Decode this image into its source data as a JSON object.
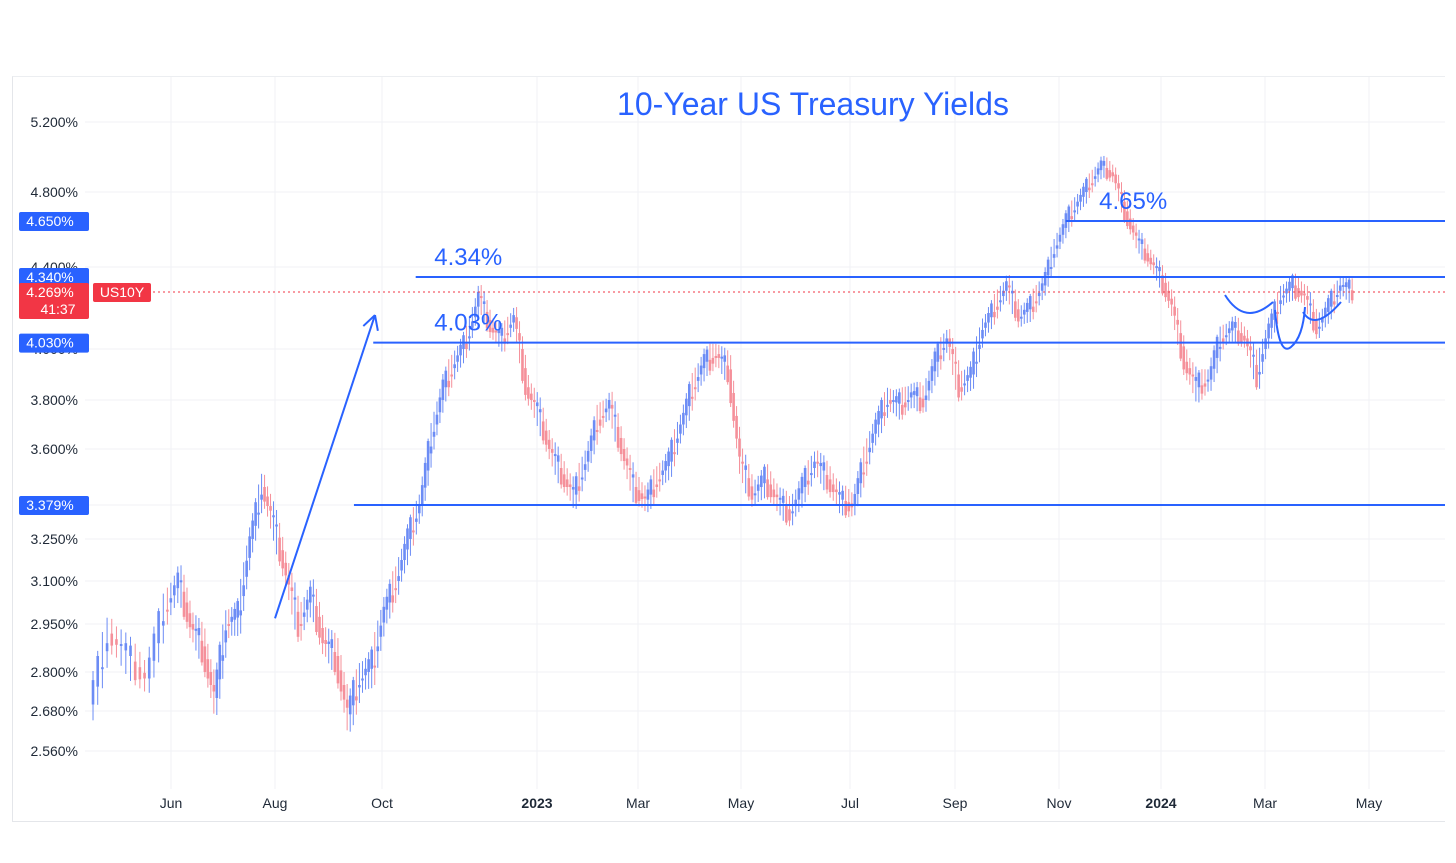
{
  "chart_data": {
    "type": "candlestick",
    "title": "10-Year US Treasury Yields",
    "symbol": "US10Y",
    "y_axis": {
      "ticks": [
        "5.200%",
        "4.800%",
        "4.400%",
        "4.000%",
        "3.800%",
        "3.600%",
        "3.379%",
        "3.250%",
        "3.100%",
        "2.950%",
        "2.800%",
        "2.680%",
        "2.560%"
      ],
      "tick_values": [
        5.2,
        4.8,
        4.4,
        4.0,
        3.8,
        3.6,
        3.379,
        3.25,
        3.1,
        2.95,
        2.8,
        2.68,
        2.56
      ]
    },
    "x_axis": {
      "ticks": [
        {
          "label": "Jun",
          "date": "2022-06",
          "bold": false
        },
        {
          "label": "Aug",
          "date": "2022-08",
          "bold": false
        },
        {
          "label": "Oct",
          "date": "2022-10",
          "bold": false
        },
        {
          "label": "2023",
          "date": "2023-01",
          "bold": true
        },
        {
          "label": "Mar",
          "date": "2023-03",
          "bold": false
        },
        {
          "label": "May",
          "date": "2023-05",
          "bold": false
        },
        {
          "label": "Jul",
          "date": "2023-07",
          "bold": false
        },
        {
          "label": "Sep",
          "date": "2023-09",
          "bold": false
        },
        {
          "label": "Nov",
          "date": "2023-11",
          "bold": false
        },
        {
          "label": "2024",
          "date": "2024-01",
          "bold": true
        },
        {
          "label": "Mar",
          "date": "2024-03",
          "bold": false
        },
        {
          "label": "May",
          "date": "2024-05",
          "bold": false
        }
      ]
    },
    "price_badges": [
      {
        "label": "4.650%",
        "value": 4.65,
        "color": "#2962ff"
      },
      {
        "label": "4.340%",
        "value": 4.34,
        "color": "#2962ff"
      },
      {
        "label": "4.030%",
        "value": 4.03,
        "color": "#2962ff"
      },
      {
        "label": "3.379%",
        "value": 3.379,
        "color": "#2962ff"
      }
    ],
    "current": {
      "value": 4.269,
      "label": "4.269%",
      "countdown": "41:37",
      "color": "#f23645"
    },
    "levels": [
      {
        "value": 4.65,
        "label": "4.65%",
        "start": "2023-11-05",
        "end": "2024-05-31"
      },
      {
        "value": 4.34,
        "label": "4.34%",
        "start": "2022-10-21",
        "end": "2024-05-31"
      },
      {
        "value": 4.03,
        "label": "4.03%",
        "start": "2022-09-26",
        "end": "2024-05-31"
      },
      {
        "value": 3.379,
        "label": "",
        "start": "2022-09-15",
        "end": "2024-05-31"
      }
    ],
    "annotations": [
      {
        "type": "arrow",
        "from": {
          "date": "2022-08-01",
          "value": 2.97
        },
        "to": {
          "date": "2022-09-27",
          "value": 4.16
        }
      }
    ],
    "series": [
      {
        "date": "2022-05-02",
        "close": 2.7
      },
      {
        "date": "2022-05-09",
        "close": 2.92
      },
      {
        "date": "2022-05-16",
        "close": 2.85
      },
      {
        "date": "2022-05-23",
        "close": 2.78
      },
      {
        "date": "2022-05-30",
        "close": 3.0
      },
      {
        "date": "2022-06-06",
        "close": 3.1
      },
      {
        "date": "2022-06-13",
        "close": 2.95
      },
      {
        "date": "2022-06-20",
        "close": 2.88
      },
      {
        "date": "2022-06-27",
        "close": 2.72
      },
      {
        "date": "2022-07-04",
        "close": 2.95
      },
      {
        "date": "2022-07-11",
        "close": 2.98
      },
      {
        "date": "2022-07-18",
        "close": 3.25
      },
      {
        "date": "2022-07-25",
        "close": 3.45
      },
      {
        "date": "2022-08-01",
        "close": 3.3
      },
      {
        "date": "2022-08-08",
        "close": 3.12
      },
      {
        "date": "2022-08-15",
        "close": 2.95
      },
      {
        "date": "2022-08-22",
        "close": 3.05
      },
      {
        "date": "2022-08-29",
        "close": 2.9
      },
      {
        "date": "2022-09-05",
        "close": 2.85
      },
      {
        "date": "2022-09-12",
        "close": 2.67
      },
      {
        "date": "2022-09-19",
        "close": 2.78
      },
      {
        "date": "2022-09-26",
        "close": 2.82
      },
      {
        "date": "2022-10-03",
        "close": 3.0
      },
      {
        "date": "2022-10-10",
        "close": 3.1
      },
      {
        "date": "2022-10-17",
        "close": 3.25
      },
      {
        "date": "2022-10-24",
        "close": 3.38
      },
      {
        "date": "2022-10-31",
        "close": 3.65
      },
      {
        "date": "2022-11-07",
        "close": 3.85
      },
      {
        "date": "2022-11-14",
        "close": 3.95
      },
      {
        "date": "2022-11-21",
        "close": 4.05
      },
      {
        "date": "2022-11-28",
        "close": 4.25
      },
      {
        "date": "2022-12-05",
        "close": 4.1
      },
      {
        "date": "2022-12-12",
        "close": 4.05
      },
      {
        "date": "2022-12-19",
        "close": 4.15
      },
      {
        "date": "2022-12-26",
        "close": 3.85
      },
      {
        "date": "2023-01-02",
        "close": 3.75
      },
      {
        "date": "2023-01-09",
        "close": 3.6
      },
      {
        "date": "2023-01-16",
        "close": 3.5
      },
      {
        "date": "2023-01-23",
        "close": 3.42
      },
      {
        "date": "2023-01-30",
        "close": 3.55
      },
      {
        "date": "2023-02-06",
        "close": 3.72
      },
      {
        "date": "2023-02-13",
        "close": 3.78
      },
      {
        "date": "2023-02-20",
        "close": 3.6
      },
      {
        "date": "2023-02-27",
        "close": 3.45
      },
      {
        "date": "2023-03-06",
        "close": 3.4
      },
      {
        "date": "2023-03-13",
        "close": 3.48
      },
      {
        "date": "2023-03-20",
        "close": 3.55
      },
      {
        "date": "2023-03-27",
        "close": 3.7
      },
      {
        "date": "2023-04-03",
        "close": 3.85
      },
      {
        "date": "2023-04-10",
        "close": 3.95
      },
      {
        "date": "2023-04-17",
        "close": 3.98
      },
      {
        "date": "2023-04-24",
        "close": 3.92
      },
      {
        "date": "2023-05-01",
        "close": 3.55
      },
      {
        "date": "2023-05-08",
        "close": 3.42
      },
      {
        "date": "2023-05-15",
        "close": 3.48
      },
      {
        "date": "2023-05-22",
        "close": 3.4
      },
      {
        "date": "2023-05-29",
        "close": 3.35
      },
      {
        "date": "2023-06-05",
        "close": 3.45
      },
      {
        "date": "2023-06-12",
        "close": 3.55
      },
      {
        "date": "2023-06-19",
        "close": 3.48
      },
      {
        "date": "2023-06-26",
        "close": 3.4
      },
      {
        "date": "2023-07-03",
        "close": 3.38
      },
      {
        "date": "2023-07-10",
        "close": 3.55
      },
      {
        "date": "2023-07-17",
        "close": 3.7
      },
      {
        "date": "2023-07-24",
        "close": 3.8
      },
      {
        "date": "2023-07-31",
        "close": 3.78
      },
      {
        "date": "2023-08-07",
        "close": 3.82
      },
      {
        "date": "2023-08-14",
        "close": 3.8
      },
      {
        "date": "2023-08-21",
        "close": 3.95
      },
      {
        "date": "2023-08-28",
        "close": 4.05
      },
      {
        "date": "2023-09-04",
        "close": 3.85
      },
      {
        "date": "2023-09-11",
        "close": 3.9
      },
      {
        "date": "2023-09-18",
        "close": 4.1
      },
      {
        "date": "2023-09-25",
        "close": 4.2
      },
      {
        "date": "2023-10-02",
        "close": 4.3
      },
      {
        "date": "2023-10-09",
        "close": 4.15
      },
      {
        "date": "2023-10-16",
        "close": 4.2
      },
      {
        "date": "2023-10-23",
        "close": 4.3
      },
      {
        "date": "2023-10-30",
        "close": 4.5
      },
      {
        "date": "2023-11-06",
        "close": 4.65
      },
      {
        "date": "2023-11-13",
        "close": 4.75
      },
      {
        "date": "2023-11-20",
        "close": 4.85
      },
      {
        "date": "2023-11-27",
        "close": 4.95
      },
      {
        "date": "2023-12-04",
        "close": 4.9
      },
      {
        "date": "2023-12-11",
        "close": 4.7
      },
      {
        "date": "2023-12-18",
        "close": 4.55
      },
      {
        "date": "2023-12-25",
        "close": 4.45
      },
      {
        "date": "2024-01-01",
        "close": 4.35
      },
      {
        "date": "2024-01-08",
        "close": 4.2
      },
      {
        "date": "2024-01-15",
        "close": 3.95
      },
      {
        "date": "2024-01-22",
        "close": 3.85
      },
      {
        "date": "2024-01-29",
        "close": 3.88
      },
      {
        "date": "2024-02-05",
        "close": 4.05
      },
      {
        "date": "2024-02-12",
        "close": 4.1
      },
      {
        "date": "2024-02-19",
        "close": 4.05
      },
      {
        "date": "2024-02-26",
        "close": 3.9
      },
      {
        "date": "2024-03-04",
        "close": 4.1
      },
      {
        "date": "2024-03-11",
        "close": 4.25
      },
      {
        "date": "2024-03-18",
        "close": 4.3
      },
      {
        "date": "2024-03-25",
        "close": 4.25
      },
      {
        "date": "2024-04-01",
        "close": 4.1
      },
      {
        "date": "2024-04-08",
        "close": 4.2
      },
      {
        "date": "2024-04-15",
        "close": 4.3
      },
      {
        "date": "2024-04-22",
        "close": 4.27
      }
    ],
    "up_color": "#6c8cf5",
    "down_color": "#f5909a",
    "line_color": "#2962ff",
    "grid": true
  }
}
